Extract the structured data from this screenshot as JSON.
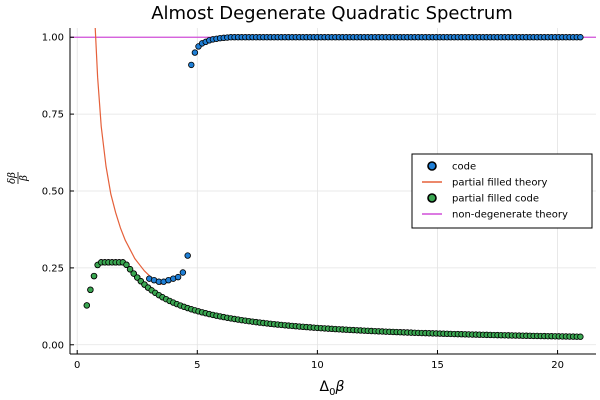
{
  "chart_data": {
    "type": "scatter",
    "title": "Almost Degenerate Quadratic Spectrum",
    "xlabel_main": "Δ",
    "xlabel_sub": "0",
    "xlabel_tail": "β",
    "ylabel_numerator": "δβ",
    "ylabel_denominator": "β",
    "xlim": [
      -0.3,
      21.6
    ],
    "ylim": [
      -0.03,
      1.03
    ],
    "xticks": [
      0,
      5,
      10,
      15,
      20
    ],
    "xtick_labels": [
      "0",
      "5",
      "10",
      "15",
      "20"
    ],
    "yticks": [
      0,
      0.25,
      0.5,
      0.75,
      1.0
    ],
    "ytick_labels": [
      "0.00",
      "0.25",
      "0.50",
      "0.75",
      "1.00"
    ],
    "grid": true,
    "legend_position": "right",
    "colors": {
      "code": "#1f7fd6",
      "partial_filled_theory": "#e5603a",
      "partial_filled_code": "#3aa651",
      "non_degenerate_theory": "#d14fd9"
    },
    "series": [
      {
        "name": "code",
        "kind": "scatter",
        "x_start": 0.4,
        "x_step": 0.15,
        "low_branch": {
          "x": [
            3.0,
            3.2,
            3.4,
            3.6,
            3.8,
            4.0,
            4.2,
            4.4,
            4.6
          ],
          "y": [
            0.215,
            0.21,
            0.205,
            0.205,
            0.21,
            0.215,
            0.22,
            0.235,
            0.29
          ]
        },
        "high_branch": {
          "x": [
            4.75,
            4.9,
            5.05,
            5.2,
            5.35,
            5.5,
            5.65,
            5.8,
            5.95,
            6.1,
            6.25,
            6.4
          ],
          "y": [
            0.91,
            0.95,
            0.97,
            0.98,
            0.985,
            0.99,
            0.993,
            0.995,
            0.997,
            0.998,
            0.999,
            1.0
          ],
          "plateau_to": 21.0,
          "plateau_value": 1.0
        }
      },
      {
        "name": "partial filled theory",
        "kind": "line",
        "formula": "y = 2*exp(-x/2) / (1 + exp(-x/2))^2 scaled (theory curve)",
        "x_range": [
          0.75,
          3.5
        ],
        "points": {
          "x": [
            0.75,
            0.85,
            1.0,
            1.2,
            1.4,
            1.6,
            1.8,
            2.0,
            2.2,
            2.4,
            2.6,
            2.8,
            3.0,
            3.2,
            3.4,
            3.5
          ],
          "y": [
            1.03,
            0.87,
            0.71,
            0.58,
            0.49,
            0.43,
            0.38,
            0.34,
            0.31,
            0.28,
            0.26,
            0.24,
            0.225,
            0.21,
            0.2,
            0.195
          ]
        }
      },
      {
        "name": "partial filled code",
        "kind": "scatter",
        "x_range": [
          0.4,
          21.0
        ],
        "x_step": 0.15
      },
      {
        "name": "non-degenerate theory",
        "kind": "hline",
        "y": 1.0
      }
    ],
    "legend": [
      {
        "key": "code",
        "label": "code",
        "marker": "circle"
      },
      {
        "key": "partial_filled_theory",
        "label": "partial filled theory",
        "marker": "line"
      },
      {
        "key": "partial_filled_code",
        "label": "partial filled code",
        "marker": "circle"
      },
      {
        "key": "non_degenerate_theory",
        "label": "non-degenerate theory",
        "marker": "line"
      }
    ]
  }
}
